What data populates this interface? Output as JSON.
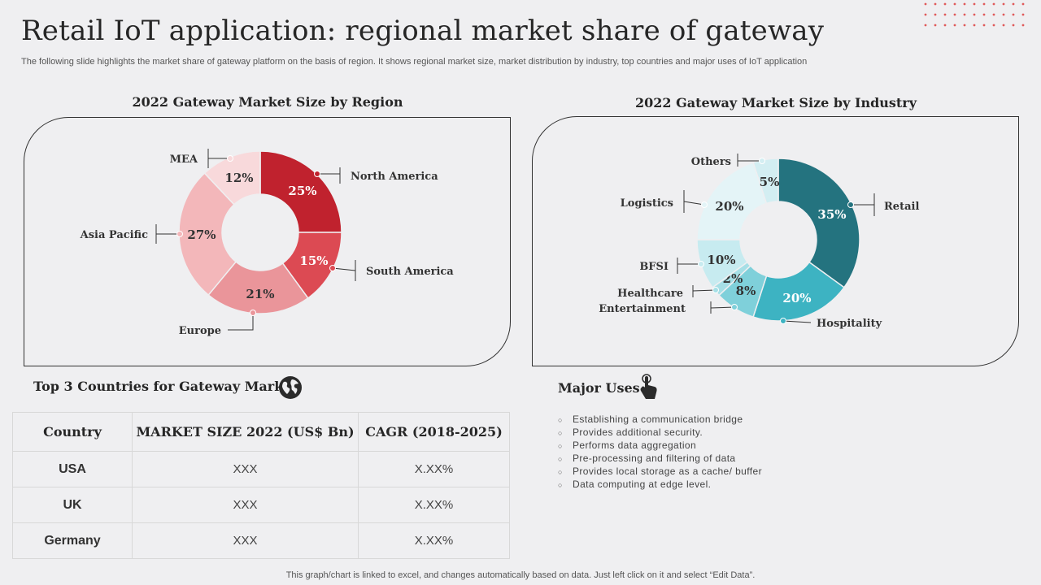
{
  "header": {
    "title": "Retail IoT application: regional market share of gateway",
    "subtitle": "The following slide highlights the market share of gateway platform on the basis of region. It shows regional market size, market distribution by industry, top countries and major uses of IoT application"
  },
  "chart_data": [
    {
      "type": "pie",
      "variant": "donut",
      "title": "2022 Gateway Market Size by Region",
      "categories": [
        "North America",
        "South America",
        "Europe",
        "Asia Pacific",
        "MEA"
      ],
      "values": [
        25,
        15,
        21,
        27,
        12
      ],
      "value_labels": [
        "25%",
        "15%",
        "21%",
        "27%",
        "12%"
      ],
      "colors": [
        "#c0222e",
        "#dc4a53",
        "#ea959a",
        "#f3b7ba",
        "#f8d9db"
      ]
    },
    {
      "type": "pie",
      "variant": "donut",
      "title": "2022 Gateway Market Size by Industry",
      "categories": [
        "Retail",
        "Hospitality",
        "Entertainment",
        "Healthcare",
        "BFSI",
        "Logistics",
        "Others"
      ],
      "values": [
        35,
        20,
        8,
        2,
        10,
        20,
        5
      ],
      "value_labels": [
        "35%",
        "20%",
        "8%",
        "2%",
        "10%",
        "20%",
        "5%"
      ],
      "colors": [
        "#24737f",
        "#3db3c2",
        "#7fd0da",
        "#a6dfe6",
        "#c7ebf0",
        "#e4f4f7",
        "#d3eef2"
      ]
    }
  ],
  "countries": {
    "title": "Top 3 Countries for Gateway Market",
    "headers": [
      "Country",
      "MARKET SIZE 2022 (US$ Bn)",
      "CAGR (2018-2025)"
    ],
    "rows": [
      [
        "USA",
        "XXX",
        "X.XX%"
      ],
      [
        "UK",
        "XXX",
        "X.XX%"
      ],
      [
        "Germany",
        "XXX",
        "X.XX%"
      ]
    ]
  },
  "uses": {
    "title": "Major Uses",
    "items": [
      "Establishing a communication bridge",
      "Provides additional security.",
      "Performs data aggregation",
      "Pre-processing and filtering of data",
      "Provides local storage as a cache/ buffer",
      "Data computing at edge level."
    ]
  },
  "footer": "This graph/chart is linked to excel, and changes automatically based on data. Just left click on it and select “Edit Data”.",
  "icons": [
    "globe-icon",
    "hand-pointer-icon"
  ],
  "colors": {
    "background": "#efeff1",
    "accent_red": "#c0222e",
    "accent_teal": "#24737f",
    "dot_red": "#e05a5a"
  }
}
